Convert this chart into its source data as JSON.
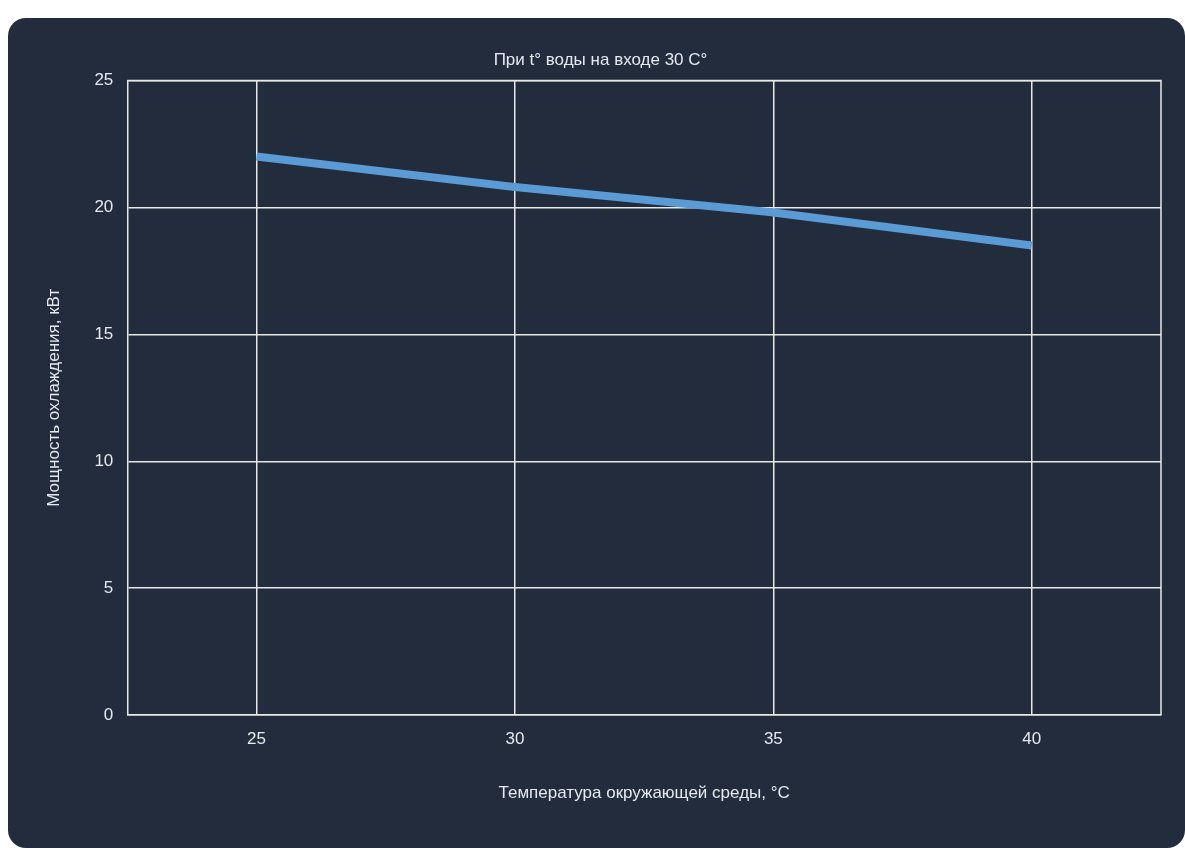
{
  "chart_data": {
    "type": "line",
    "title": "При t° воды на входе 30 C°",
    "xlabel": "Температура окружающей среды, °C",
    "ylabel": "Мощность охлаждения, кВт",
    "x": [
      25,
      30,
      35,
      40
    ],
    "series": [
      {
        "color": "#5b9bd5",
        "values": [
          22,
          20.8,
          19.8,
          18.5
        ]
      }
    ],
    "xlim": [
      22.5,
      42.5
    ],
    "xticks": [
      25,
      30,
      35,
      40
    ],
    "ylim": [
      0,
      25
    ],
    "yticks": [
      0,
      5,
      10,
      15,
      20,
      25
    ],
    "grid": true,
    "legend": false,
    "marker": "none",
    "line_style": "solid"
  }
}
